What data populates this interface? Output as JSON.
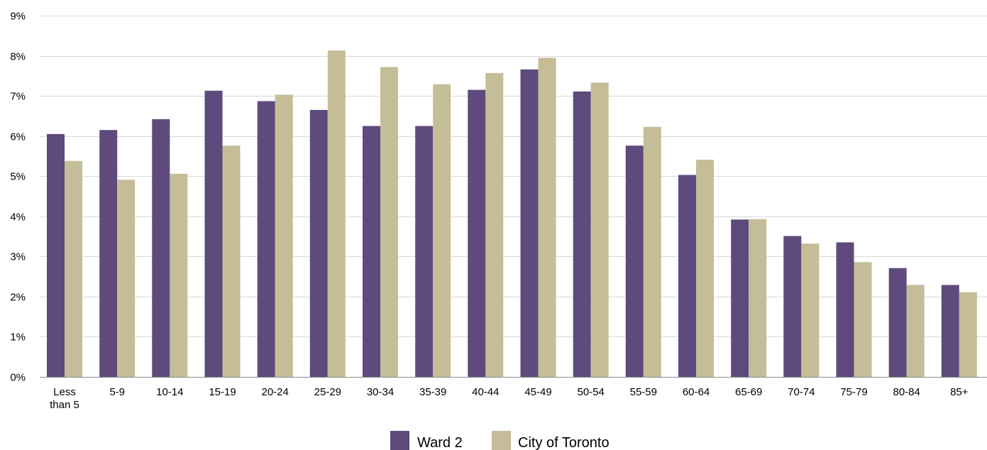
{
  "chart_data": {
    "type": "bar",
    "title": "",
    "xlabel": "",
    "ylabel": "",
    "ylim": [
      0,
      9
    ],
    "y_ticks": [
      "0%",
      "1%",
      "2%",
      "3%",
      "4%",
      "5%",
      "6%",
      "7%",
      "8%",
      "9%"
    ],
    "y_unit": "%",
    "grid": true,
    "legend_position": "bottom",
    "categories": [
      "Less than 5",
      "5-9",
      "10-14",
      "15-19",
      "20-24",
      "25-29",
      "30-34",
      "35-39",
      "40-44",
      "45-49",
      "50-54",
      "55-59",
      "60-64",
      "65-69",
      "70-74",
      "75-79",
      "80-84",
      "85+"
    ],
    "series": [
      {
        "name": "Ward 2",
        "color": "#5e4a7c",
        "values": [
          6.05,
          6.15,
          6.42,
          7.13,
          6.87,
          6.65,
          6.25,
          6.25,
          7.15,
          7.66,
          7.11,
          5.76,
          5.03,
          3.92,
          3.51,
          3.35,
          2.71,
          2.29
        ]
      },
      {
        "name": "City of Toronto",
        "color": "#c5bd98",
        "values": [
          5.38,
          4.91,
          5.06,
          5.76,
          7.03,
          8.13,
          7.72,
          7.29,
          7.57,
          7.95,
          7.33,
          6.23,
          5.41,
          3.93,
          3.32,
          2.86,
          2.29,
          2.11
        ]
      }
    ]
  }
}
